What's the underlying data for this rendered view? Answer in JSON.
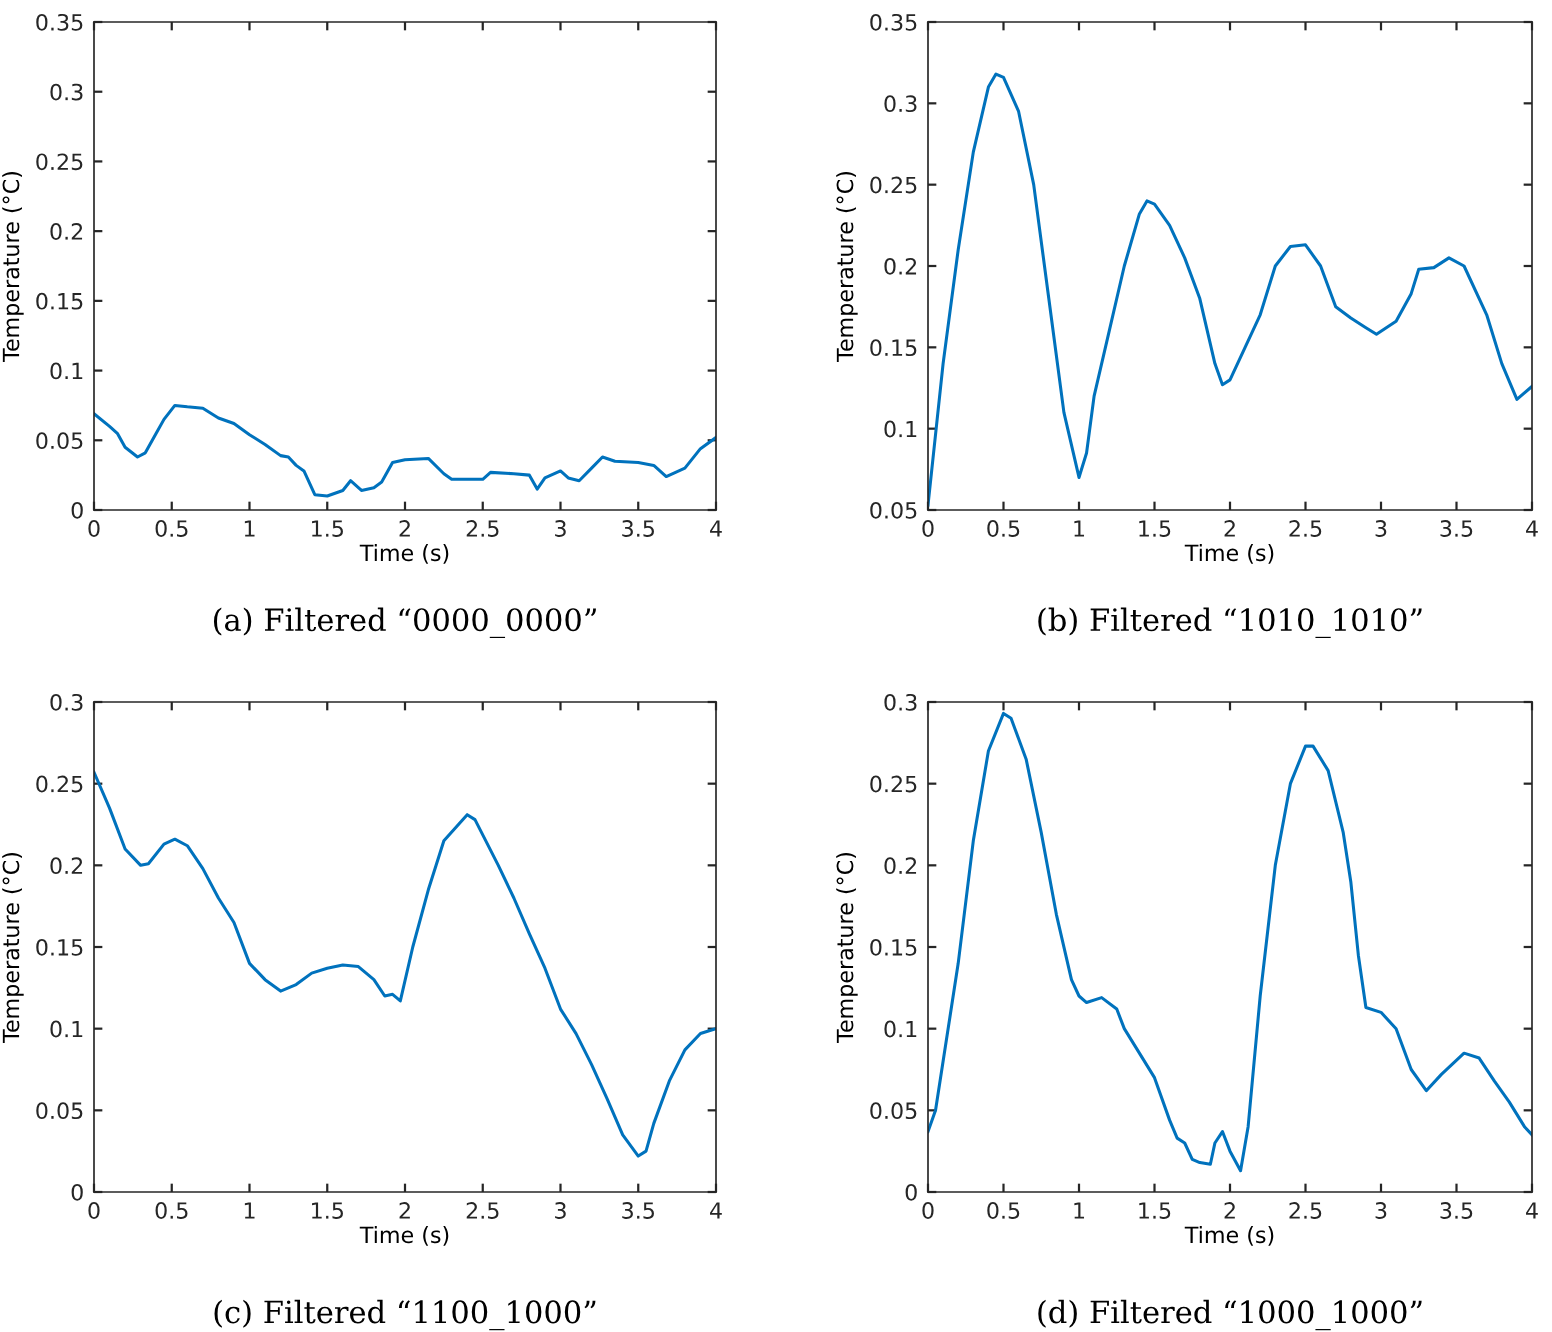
{
  "chart_data": [
    {
      "type": "line",
      "title": "(a) Filtered “0000_0000”",
      "xlabel": "Time (s)",
      "ylabel": "Temperature (°C)",
      "xlim": [
        0,
        4
      ],
      "ylim": [
        0,
        0.35
      ],
      "xticks": [
        0,
        0.5,
        1,
        1.5,
        2,
        2.5,
        3,
        3.5,
        4
      ],
      "yticks": [
        0,
        0.05,
        0.1,
        0.15,
        0.2,
        0.25,
        0.3,
        0.35
      ],
      "grid": false,
      "legend": false,
      "series": [
        {
          "color": "#0072bd",
          "x": [
            0,
            0.1,
            0.15,
            0.2,
            0.28,
            0.33,
            0.4,
            0.45,
            0.52,
            0.6,
            0.7,
            0.8,
            0.9,
            1.0,
            1.1,
            1.2,
            1.25,
            1.3,
            1.35,
            1.42,
            1.5,
            1.6,
            1.65,
            1.72,
            1.8,
            1.85,
            1.92,
            2.0,
            2.15,
            2.25,
            2.3,
            2.5,
            2.55,
            2.7,
            2.8,
            2.85,
            2.9,
            3.0,
            3.05,
            3.12,
            3.2,
            3.27,
            3.35,
            3.5,
            3.6,
            3.68,
            3.8,
            3.9,
            4.0
          ],
          "values": [
            0.069,
            0.06,
            0.055,
            0.045,
            0.038,
            0.041,
            0.055,
            0.065,
            0.075,
            0.074,
            0.073,
            0.066,
            0.062,
            0.054,
            0.047,
            0.039,
            0.038,
            0.032,
            0.028,
            0.011,
            0.01,
            0.014,
            0.021,
            0.014,
            0.016,
            0.02,
            0.034,
            0.036,
            0.037,
            0.026,
            0.022,
            0.022,
            0.027,
            0.026,
            0.025,
            0.015,
            0.023,
            0.028,
            0.023,
            0.021,
            0.03,
            0.038,
            0.035,
            0.034,
            0.032,
            0.024,
            0.03,
            0.044,
            0.052
          ]
        }
      ]
    },
    {
      "type": "line",
      "title": "(b) Filtered “1010_1010”",
      "xlabel": "Time (s)",
      "ylabel": "Temperature (°C)",
      "xlim": [
        0,
        4
      ],
      "ylim": [
        0.05,
        0.35
      ],
      "xticks": [
        0,
        0.5,
        1,
        1.5,
        2,
        2.5,
        3,
        3.5,
        4
      ],
      "yticks": [
        0.05,
        0.1,
        0.15,
        0.2,
        0.25,
        0.3,
        0.35
      ],
      "grid": false,
      "legend": false,
      "series": [
        {
          "color": "#0072bd",
          "x": [
            0,
            0.1,
            0.2,
            0.3,
            0.4,
            0.45,
            0.5,
            0.6,
            0.7,
            0.8,
            0.9,
            1.0,
            1.05,
            1.1,
            1.2,
            1.3,
            1.4,
            1.45,
            1.5,
            1.6,
            1.7,
            1.8,
            1.9,
            1.95,
            2.0,
            2.1,
            2.2,
            2.3,
            2.4,
            2.5,
            2.6,
            2.7,
            2.8,
            2.9,
            2.97,
            3.1,
            3.2,
            3.25,
            3.35,
            3.45,
            3.55,
            3.7,
            3.8,
            3.9,
            4.0
          ],
          "values": [
            0.053,
            0.14,
            0.21,
            0.27,
            0.31,
            0.318,
            0.316,
            0.295,
            0.25,
            0.18,
            0.11,
            0.07,
            0.085,
            0.12,
            0.16,
            0.2,
            0.232,
            0.24,
            0.238,
            0.225,
            0.205,
            0.18,
            0.14,
            0.127,
            0.13,
            0.15,
            0.17,
            0.2,
            0.212,
            0.213,
            0.2,
            0.175,
            0.168,
            0.162,
            0.158,
            0.166,
            0.183,
            0.198,
            0.199,
            0.205,
            0.2,
            0.17,
            0.14,
            0.118,
            0.126
          ]
        }
      ]
    },
    {
      "type": "line",
      "title": "(c) Filtered “1100_1000”",
      "xlabel": "Time (s)",
      "ylabel": "Temperature (°C)",
      "xlim": [
        0,
        4
      ],
      "ylim": [
        0,
        0.3
      ],
      "xticks": [
        0,
        0.5,
        1,
        1.5,
        2,
        2.5,
        3,
        3.5,
        4
      ],
      "yticks": [
        0,
        0.05,
        0.1,
        0.15,
        0.2,
        0.25,
        0.3
      ],
      "grid": false,
      "legend": false,
      "series": [
        {
          "color": "#0072bd",
          "x": [
            0,
            0.1,
            0.2,
            0.3,
            0.35,
            0.45,
            0.52,
            0.6,
            0.7,
            0.8,
            0.9,
            1.0,
            1.1,
            1.2,
            1.3,
            1.4,
            1.5,
            1.6,
            1.7,
            1.8,
            1.87,
            1.92,
            1.97,
            2.05,
            2.15,
            2.2,
            2.25,
            2.4,
            2.45,
            2.6,
            2.7,
            2.8,
            2.9,
            3.0,
            3.1,
            3.2,
            3.3,
            3.4,
            3.5,
            3.55,
            3.6,
            3.7,
            3.8,
            3.9,
            4.0
          ],
          "values": [
            0.257,
            0.235,
            0.21,
            0.2,
            0.201,
            0.213,
            0.216,
            0.212,
            0.198,
            0.18,
            0.165,
            0.14,
            0.13,
            0.123,
            0.127,
            0.134,
            0.137,
            0.139,
            0.138,
            0.13,
            0.12,
            0.121,
            0.117,
            0.15,
            0.185,
            0.2,
            0.215,
            0.231,
            0.228,
            0.2,
            0.18,
            0.158,
            0.137,
            0.112,
            0.097,
            0.078,
            0.057,
            0.035,
            0.022,
            0.025,
            0.042,
            0.068,
            0.087,
            0.097,
            0.1
          ]
        }
      ]
    },
    {
      "type": "line",
      "title": "(d) Filtered “1000_1000”",
      "xlabel": "Time (s)",
      "ylabel": "Temperature (°C)",
      "xlim": [
        0,
        4
      ],
      "ylim": [
        0,
        0.3
      ],
      "xticks": [
        0,
        0.5,
        1,
        1.5,
        2,
        2.5,
        3,
        3.5,
        4
      ],
      "yticks": [
        0,
        0.05,
        0.1,
        0.15,
        0.2,
        0.25,
        0.3
      ],
      "grid": false,
      "legend": false,
      "series": [
        {
          "color": "#0072bd",
          "x": [
            0,
            0.05,
            0.1,
            0.2,
            0.3,
            0.4,
            0.5,
            0.55,
            0.65,
            0.75,
            0.85,
            0.95,
            1.0,
            1.05,
            1.15,
            1.25,
            1.3,
            1.4,
            1.5,
            1.6,
            1.65,
            1.7,
            1.75,
            1.8,
            1.87,
            1.9,
            1.95,
            2.0,
            2.07,
            2.12,
            2.2,
            2.3,
            2.4,
            2.5,
            2.55,
            2.65,
            2.75,
            2.8,
            2.85,
            2.9,
            3.0,
            3.1,
            3.2,
            3.3,
            3.4,
            3.55,
            3.65,
            3.75,
            3.85,
            3.95,
            4.0
          ],
          "values": [
            0.037,
            0.05,
            0.08,
            0.14,
            0.215,
            0.27,
            0.293,
            0.29,
            0.265,
            0.22,
            0.17,
            0.13,
            0.12,
            0.116,
            0.119,
            0.112,
            0.1,
            0.085,
            0.07,
            0.044,
            0.033,
            0.03,
            0.02,
            0.018,
            0.017,
            0.03,
            0.037,
            0.025,
            0.013,
            0.04,
            0.12,
            0.2,
            0.25,
            0.273,
            0.273,
            0.258,
            0.22,
            0.19,
            0.145,
            0.113,
            0.11,
            0.1,
            0.075,
            0.062,
            0.072,
            0.085,
            0.082,
            0.068,
            0.055,
            0.04,
            0.035
          ]
        }
      ]
    }
  ]
}
